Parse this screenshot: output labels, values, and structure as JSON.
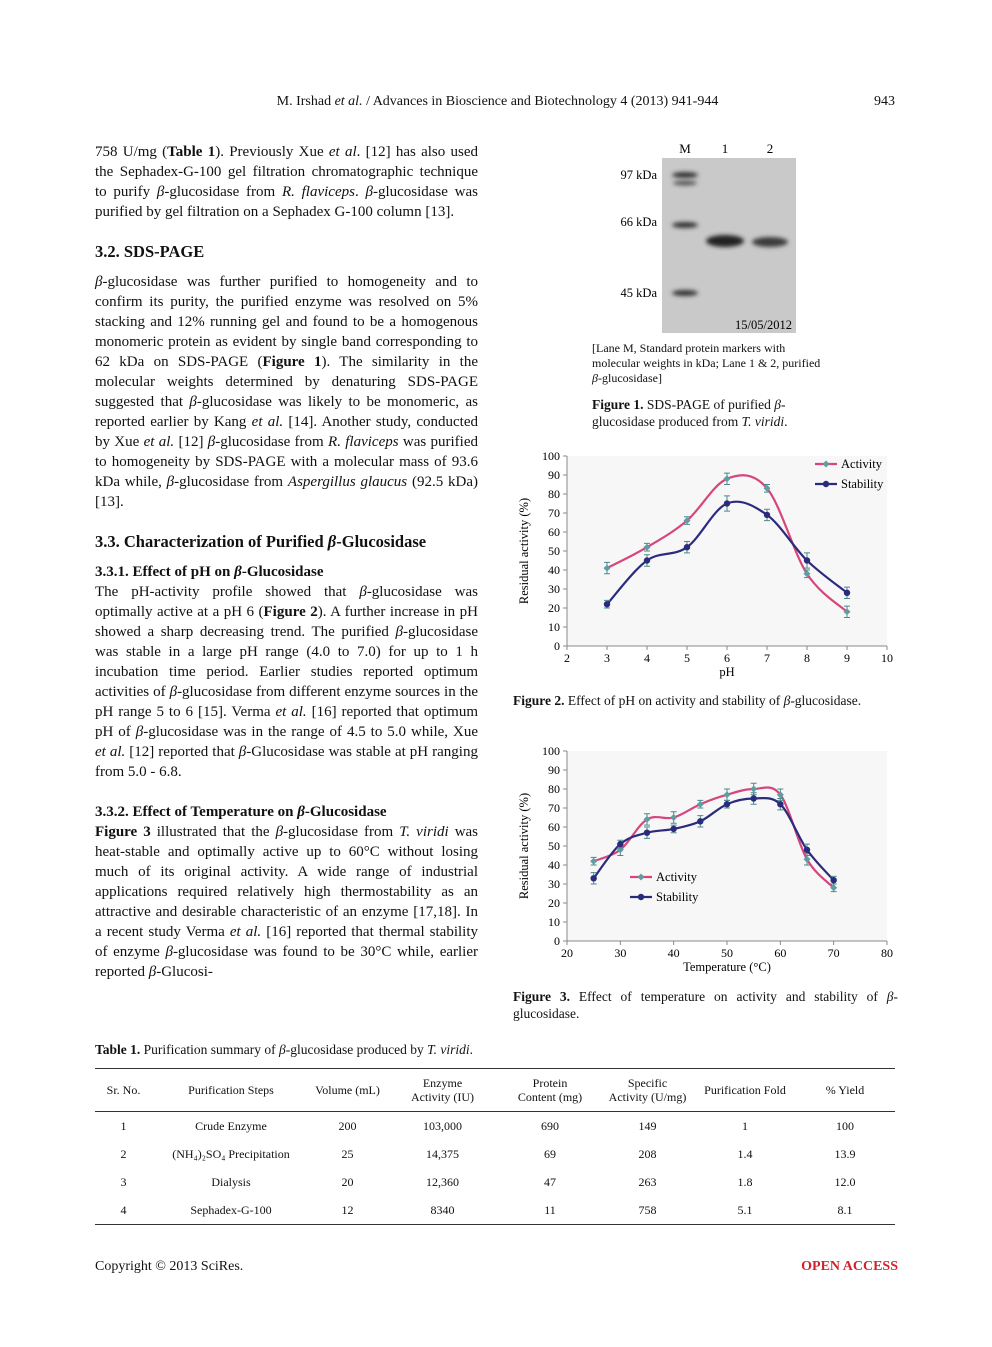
{
  "header": {
    "running_title": [
      "M. Irshad ",
      {
        "em": "et al."
      },
      " / Advances in Bioscience and Biotechnology 4 (2013) 941-944"
    ],
    "page_number": "943"
  },
  "body": [
    {
      "paragraph": [
        "758 U/mg (",
        {
          "b": "Table 1"
        },
        "). Previously Xue ",
        {
          "em": "et al"
        },
        ". [12] has also used the Sephadex-G-100 gel filtration chromatographic technique to purify ",
        {
          "em": "β"
        },
        "-glucosidase from ",
        {
          "em": "R. flaviceps"
        },
        ". ",
        {
          "em": "β"
        },
        "-glucosidase was purified by gel filtration on a Sephadex G-100 column [13]."
      ]
    },
    {
      "heading": [
        "3.2. SDS-PAGE"
      ]
    },
    {
      "paragraph": [
        {
          "em": "β"
        },
        "-glucosidase was further purified to homogeneity and to confirm its purity, the purified enzyme was resolved on 5% stacking and 12% running gel and found to be a homogenous monomeric protein as evident by single band corresponding to 62 kDa on SDS-PAGE (",
        {
          "b": "Figure 1"
        },
        "). The similarity in the molecular weights determined by denaturing SDS-PAGE suggested that ",
        {
          "em": "β"
        },
        "-glucosidase was likely to be monomeric, as reported earlier by Kang ",
        {
          "em": "et al."
        },
        " [14]. Another study, conducted by Xue ",
        {
          "em": "et al."
        },
        " [12] ",
        {
          "em": "β"
        },
        "-glucosidase from ",
        {
          "em": "R. flaviceps"
        },
        " was purified to homogeneity by SDS-PAGE with a molecular mass of 93.6 kDa while, ",
        {
          "em": "β"
        },
        "-glucosidase from ",
        {
          "em": "Aspergillus glaucus"
        },
        " (92.5 kDa) [13]."
      ]
    },
    {
      "heading": [
        "3.3. Characterization of Purified ",
        {
          "em": "β"
        },
        "-Glucosidase"
      ]
    },
    {
      "subheading": [
        "3.3.1. Effect of pH on ",
        {
          "em": "β"
        },
        "-Glucosidase"
      ]
    },
    {
      "paragraph": [
        "The pH-activity profile showed that ",
        {
          "em": "β"
        },
        "-glucosidase was optimally active at a pH 6 (",
        {
          "b": "Figure 2"
        },
        "). A further increase in pH showed a sharp decreasing trend. The purified ",
        {
          "em": "β"
        },
        "-glucosidase was stable in a large pH range (4.0 to 7.0) for up to 1 h incubation time period. Earlier studies reported optimum activities of ",
        {
          "em": "β"
        },
        "-glucosidase from different enzyme sources in the pH range 5 to 6 [15]. Verma ",
        {
          "em": "et al."
        },
        " [16] reported that optimum pH of ",
        {
          "em": "β"
        },
        "-glucosidase was in the range of 4.5 to 5.0 while, Xue ",
        {
          "em": "et al."
        },
        " [12] reported that ",
        {
          "em": "β"
        },
        "-Glucosidase was stable at pH ranging from 5.0 - 6.8."
      ]
    },
    {
      "subheading": [
        "3.3.2. Effect of Temperature on ",
        {
          "em": "β"
        },
        "-Glucosidase"
      ]
    },
    {
      "paragraph": [
        {
          "b": "Figure 3"
        },
        " illustrated that the ",
        {
          "em": "β"
        },
        "-glucosidase from ",
        {
          "em": "T. viridi"
        },
        " was heat-stable and optimally active up to 60°C without losing much of its original activity. A wide range of industrial applications required relatively high thermostability as an attractive and desirable characteristic of an enzyme [17,18]. In a recent study Verma ",
        {
          "em": "et al."
        },
        " [16] reported that thermal stability of enzyme ",
        {
          "em": "β"
        },
        "-glucosidase was found to be 30°C while, earlier reported ",
        {
          "em": "β"
        },
        "-Glucosi-"
      ]
    }
  ],
  "figure_1": {
    "lanes": [
      "M",
      "1",
      "2"
    ],
    "markers": [
      "97 kDa",
      "66 kDa",
      "45 kDa"
    ],
    "date": "15/05/2012",
    "note": [
      "[Lane M, Standard protein markers with molecular weights in kDa; Lane 1 & 2, purified ",
      {
        "em": "β"
      },
      "-glucosidase]"
    ],
    "caption": [
      {
        "b": "Figure 1."
      },
      " SDS-PAGE of purified ",
      {
        "em": "β"
      },
      "-glucosidase produced from ",
      {
        "em": "T. viridi"
      },
      "."
    ]
  },
  "chart_data": [
    {
      "type": "line",
      "x": [
        3,
        4,
        5,
        6,
        7,
        8,
        9
      ],
      "xlim": [
        2,
        10
      ],
      "xticks": [
        2,
        3,
        4,
        5,
        6,
        7,
        8,
        9,
        10
      ],
      "ylim": [
        0,
        100
      ],
      "yticks": [
        0,
        10,
        20,
        30,
        40,
        50,
        60,
        70,
        80,
        90,
        100
      ],
      "xlabel": "pH",
      "ylabel": "Residual activity (%)",
      "legend": "top-right",
      "smooth": true,
      "grid": false,
      "series": [
        {
          "name": "Activity",
          "color": "#d6457c",
          "marker_color": "#5f9ea0",
          "marker": "diamond",
          "values": [
            41,
            52,
            66,
            88,
            83,
            38,
            18
          ],
          "errors": [
            3,
            2,
            2,
            3,
            2,
            2,
            3
          ]
        },
        {
          "name": "Stability",
          "color": "#2b2b7e",
          "marker_color": "#2b2b7e",
          "marker": "circle",
          "values": [
            22,
            45,
            52,
            75,
            69,
            45,
            28
          ],
          "errors": [
            2,
            3,
            3,
            4,
            3,
            4,
            3
          ]
        }
      ],
      "caption": [
        {
          "b": "Figure 2."
        },
        " Effect of pH on activity and stability of ",
        {
          "em": "β"
        },
        "-glucosidase."
      ]
    },
    {
      "type": "line",
      "x": [
        25,
        30,
        35,
        40,
        45,
        50,
        55,
        60,
        65,
        70
      ],
      "xlim": [
        20,
        80
      ],
      "xticks": [
        20,
        30,
        40,
        50,
        60,
        70,
        80
      ],
      "ylim": [
        0,
        100
      ],
      "yticks": [
        0,
        10,
        20,
        30,
        40,
        50,
        60,
        70,
        80,
        90,
        100
      ],
      "xlabel": "Temperature (°C)",
      "ylabel": "Residual activity (%)",
      "legend": "lower-left",
      "smooth": true,
      "grid": false,
      "series": [
        {
          "name": "Activity",
          "color": "#d6457c",
          "marker_color": "#5f9ea0",
          "marker": "diamond",
          "values": [
            42,
            48,
            64,
            65,
            72,
            77,
            80,
            77,
            43,
            28
          ],
          "errors": [
            2,
            3,
            3,
            3,
            2,
            3,
            3,
            3,
            3,
            2
          ]
        },
        {
          "name": "Stability",
          "color": "#2b2b7e",
          "marker_color": "#2b2b7e",
          "marker": "circle",
          "values": [
            33,
            51,
            57,
            59,
            63,
            72,
            75,
            72,
            48,
            32
          ],
          "errors": [
            3,
            2,
            3,
            2,
            3,
            2,
            3,
            3,
            3,
            2
          ]
        }
      ],
      "caption": [
        {
          "b": "Figure 3."
        },
        " Effect of temperature on activity and stability of ",
        {
          "em": "β"
        },
        "-glucosidase."
      ]
    }
  ],
  "table": {
    "caption": [
      {
        "b": "Table 1."
      },
      " Purification summary of ",
      {
        "em": "β"
      },
      "-glucosidase produced by ",
      {
        "em": "T. viridi"
      },
      "."
    ],
    "columns": [
      "Sr. No.",
      "Purification Steps",
      "Volume (mL)",
      "Enzyme\nActivity (IU)",
      "Protein\nContent (mg)",
      "Specific\nActivity (U/mg)",
      "Purification Fold",
      "% Yield"
    ],
    "rows": [
      [
        "1",
        "Crude Enzyme",
        "200",
        "103,000",
        "690",
        "149",
        "1",
        "100"
      ],
      [
        "2",
        "(NH₄)₂SO₄ Precipitation",
        "25",
        "14,375",
        "69",
        "208",
        "1.4",
        "13.9"
      ],
      [
        "3",
        "Dialysis",
        "20",
        "12,360",
        "47",
        "263",
        "1.8",
        "12.0"
      ],
      [
        "4",
        "Sephadex-G-100",
        "12",
        "8340",
        "11",
        "758",
        "5.1",
        "8.1"
      ]
    ]
  },
  "footer": {
    "copyright": "Copyright © 2013 SciRes.",
    "open_access": "OPEN ACCESS"
  }
}
